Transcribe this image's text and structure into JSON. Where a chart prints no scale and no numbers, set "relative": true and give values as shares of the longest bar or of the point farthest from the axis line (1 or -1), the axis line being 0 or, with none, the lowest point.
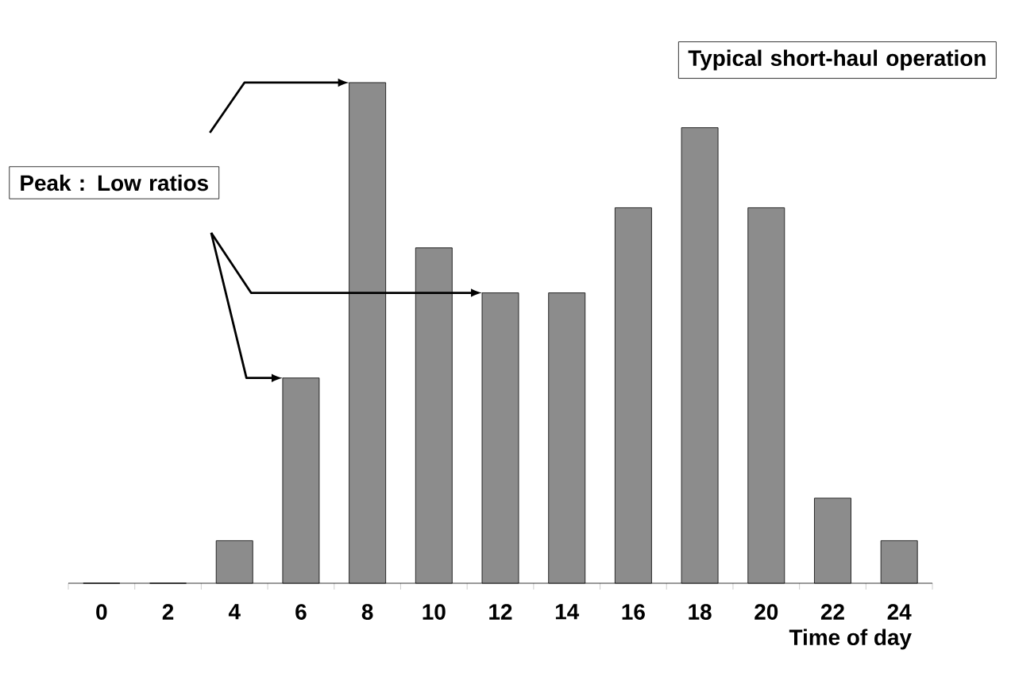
{
  "chart_data": {
    "type": "bar",
    "relative": true,
    "categories": [
      "0",
      "2",
      "4",
      "6",
      "8",
      "10",
      "12",
      "14",
      "16",
      "18",
      "20",
      "22",
      "24"
    ],
    "values": [
      0,
      0,
      0.085,
      0.41,
      1,
      0.67,
      0.58,
      0.58,
      0.75,
      0.91,
      0.75,
      0.17,
      0.085
    ],
    "color": "#8c8c8c",
    "xlabel": "Time of day",
    "annotations": [
      "Peak : Low ratios",
      "Typical short-haul operation"
    ]
  }
}
